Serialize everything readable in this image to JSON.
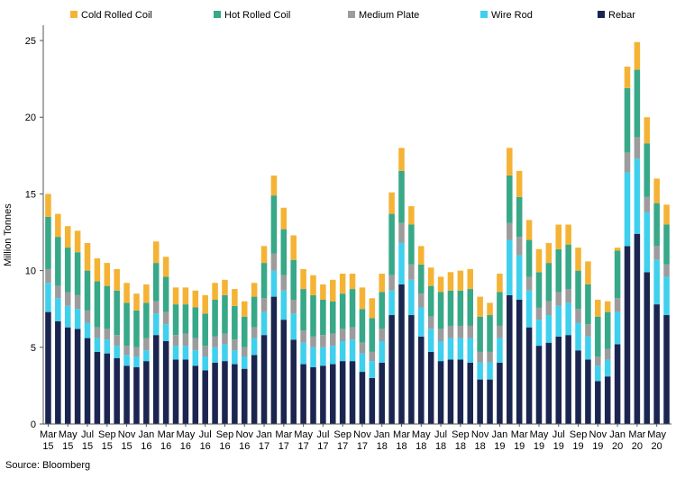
{
  "chart_data": {
    "type": "bar",
    "stacked": true,
    "ylabel": "Million Tonnes",
    "xlabel": "",
    "ylim": [
      0,
      26
    ],
    "yticks": [
      0,
      5,
      10,
      15,
      20,
      25
    ],
    "grid": false,
    "legend_position": "top",
    "source": "Source: Bloomberg",
    "colors": {
      "Cold Rolled Coil": "#f5b335",
      "Hot Rolled Coil": "#37a888",
      "Medium Plate": "#9c9c9c",
      "Wire Rod": "#3fd0ee",
      "Rebar": "#1b2650"
    },
    "x_tick_labels": [
      {
        "month": "Mar",
        "year": "15"
      },
      {
        "month": "May",
        "year": "15"
      },
      {
        "month": "Jul",
        "year": "15"
      },
      {
        "month": "Sep",
        "year": "15"
      },
      {
        "month": "Nov",
        "year": "15"
      },
      {
        "month": "Jan",
        "year": "16"
      },
      {
        "month": "Mar",
        "year": "16"
      },
      {
        "month": "May",
        "year": "16"
      },
      {
        "month": "Jul",
        "year": "16"
      },
      {
        "month": "Sep",
        "year": "16"
      },
      {
        "month": "Nov",
        "year": "16"
      },
      {
        "month": "Jan",
        "year": "17"
      },
      {
        "month": "Mar",
        "year": "17"
      },
      {
        "month": "May",
        "year": "17"
      },
      {
        "month": "Jul",
        "year": "17"
      },
      {
        "month": "Sep",
        "year": "17"
      },
      {
        "month": "Nov",
        "year": "17"
      },
      {
        "month": "Jan",
        "year": "18"
      },
      {
        "month": "Mar",
        "year": "18"
      },
      {
        "month": "May",
        "year": "18"
      },
      {
        "month": "Jul",
        "year": "18"
      },
      {
        "month": "Sep",
        "year": "18"
      },
      {
        "month": "Nov",
        "year": "18"
      },
      {
        "month": "Jan",
        "year": "19"
      },
      {
        "month": "Mar",
        "year": "19"
      },
      {
        "month": "May",
        "year": "19"
      },
      {
        "month": "Jul",
        "year": "19"
      },
      {
        "month": "Sep",
        "year": "19"
      },
      {
        "month": "Nov",
        "year": "19"
      },
      {
        "month": "Jan",
        "year": "20"
      },
      {
        "month": "Mar",
        "year": "20"
      },
      {
        "month": "May",
        "year": "20"
      }
    ],
    "categories": [
      "Mar 15",
      "Apr 15",
      "May 15",
      "Jun 15",
      "Jul 15",
      "Aug 15",
      "Sep 15",
      "Oct 15",
      "Nov 15",
      "Dec 15",
      "Jan 16",
      "Feb 16",
      "Mar 16",
      "Apr 16",
      "May 16",
      "Jun 16",
      "Jul 16",
      "Aug 16",
      "Sep 16",
      "Oct 16",
      "Nov 16",
      "Dec 16",
      "Jan 17",
      "Feb 17",
      "Mar 17",
      "Apr 17",
      "May 17",
      "Jun 17",
      "Jul 17",
      "Aug 17",
      "Sep 17",
      "Oct 17",
      "Nov 17",
      "Dec 17",
      "Jan 18",
      "Feb 18",
      "Mar 18",
      "Apr 18",
      "May 18",
      "Jun 18",
      "Jul 18",
      "Aug 18",
      "Sep 18",
      "Oct 18",
      "Nov 18",
      "Dec 18",
      "Jan 19",
      "Feb 19",
      "Mar 19",
      "Apr 19",
      "May 19",
      "Jun 19",
      "Jul 19",
      "Aug 19",
      "Sep 19",
      "Oct 19",
      "Nov 19",
      "Dec 19",
      "Jan 20",
      "Feb 20",
      "Mar 20",
      "Apr 20",
      "May 20",
      "Jun 20"
    ],
    "series": [
      {
        "name": "Rebar",
        "values": [
          7.3,
          6.7,
          6.3,
          6.2,
          5.6,
          4.7,
          4.6,
          4.3,
          3.8,
          3.7,
          4.1,
          5.8,
          5.4,
          4.2,
          4.2,
          3.8,
          3.5,
          4.0,
          4.1,
          3.9,
          3.6,
          4.5,
          5.8,
          8.3,
          6.8,
          5.5,
          3.9,
          3.7,
          3.8,
          3.9,
          4.1,
          4.1,
          3.4,
          3.0,
          4.0,
          7.1,
          9.1,
          7.1,
          5.7,
          4.7,
          4.1,
          4.2,
          4.2,
          4.0,
          2.9,
          2.9,
          4.0,
          8.4,
          8.1,
          6.3,
          5.1,
          5.3,
          5.7,
          5.8,
          4.8,
          4.2,
          2.8,
          3.1,
          5.2,
          11.6,
          12.4,
          9.9,
          7.8,
          7.1
        ]
      },
      {
        "name": "Wire Rod",
        "values": [
          1.9,
          1.5,
          1.4,
          1.3,
          1.0,
          0.9,
          0.9,
          0.8,
          0.7,
          0.7,
          0.7,
          1.4,
          1.1,
          0.9,
          0.9,
          1.0,
          0.9,
          1.0,
          1.1,
          0.9,
          0.8,
          1.1,
          1.5,
          1.7,
          1.9,
          1.7,
          1.4,
          1.3,
          1.2,
          1.2,
          1.3,
          1.4,
          1.2,
          1.1,
          1.4,
          1.6,
          2.7,
          2.3,
          1.9,
          1.5,
          1.3,
          1.4,
          1.4,
          1.6,
          1.1,
          1.1,
          1.6,
          3.6,
          2.9,
          2.4,
          1.7,
          1.8,
          2.0,
          2.1,
          1.8,
          1.5,
          1.0,
          1.1,
          2.1,
          4.8,
          4.9,
          3.9,
          2.9,
          2.5
        ]
      },
      {
        "name": "Medium Plate",
        "values": [
          0.9,
          0.8,
          0.9,
          0.9,
          0.8,
          0.7,
          0.7,
          0.7,
          0.6,
          0.6,
          0.8,
          0.8,
          0.8,
          0.7,
          0.8,
          0.8,
          0.7,
          0.7,
          0.7,
          0.7,
          0.6,
          0.7,
          0.9,
          1.1,
          1.0,
          0.9,
          0.8,
          0.7,
          0.8,
          0.8,
          0.8,
          0.8,
          0.7,
          0.6,
          0.8,
          1.0,
          1.3,
          1.0,
          0.9,
          0.8,
          0.8,
          0.8,
          0.8,
          0.8,
          0.7,
          0.7,
          0.8,
          1.1,
          1.2,
          0.9,
          0.8,
          0.9,
          0.9,
          0.9,
          0.9,
          0.8,
          0.6,
          0.7,
          0.9,
          1.3,
          1.4,
          1.0,
          0.9,
          0.8
        ]
      },
      {
        "name": "Hot Rolled Coil",
        "values": [
          3.4,
          3.2,
          2.9,
          2.8,
          2.6,
          3.0,
          2.8,
          2.9,
          2.8,
          2.4,
          2.3,
          2.5,
          2.3,
          2.0,
          1.9,
          2.0,
          2.1,
          2.4,
          2.5,
          2.2,
          2.0,
          2.0,
          2.3,
          3.8,
          3.0,
          2.6,
          2.7,
          2.7,
          2.3,
          2.1,
          2.3,
          2.5,
          2.2,
          2.2,
          2.4,
          4.0,
          3.4,
          2.6,
          1.9,
          2.0,
          2.4,
          2.3,
          2.3,
          2.4,
          2.3,
          2.4,
          2.2,
          3.1,
          2.6,
          2.4,
          2.3,
          2.5,
          2.8,
          2.9,
          2.5,
          2.6,
          2.6,
          2.4,
          3.1,
          4.2,
          4.4,
          3.5,
          2.8,
          2.6
        ]
      },
      {
        "name": "Cold Rolled Coil",
        "values": [
          1.5,
          1.5,
          1.4,
          1.4,
          1.8,
          1.5,
          1.5,
          1.4,
          1.3,
          1.1,
          1.2,
          1.4,
          1.3,
          1.1,
          1.1,
          1.1,
          1.2,
          1.1,
          1.0,
          1.1,
          1.0,
          0.9,
          1.1,
          1.3,
          1.4,
          1.6,
          1.3,
          1.3,
          1.0,
          1.4,
          1.3,
          1.0,
          1.4,
          1.3,
          1.2,
          1.4,
          1.5,
          1.2,
          1.2,
          1.2,
          1.0,
          1.2,
          1.3,
          1.3,
          1.3,
          0.8,
          1.2,
          1.8,
          1.7,
          1.3,
          1.5,
          1.3,
          1.6,
          1.3,
          1.5,
          1.5,
          1.1,
          0.7,
          0.2,
          1.4,
          1.8,
          1.7,
          1.6,
          1.3
        ]
      }
    ],
    "legend": [
      "Cold Rolled Coil",
      "Hot Rolled Coil",
      "Medium Plate",
      "Wire Rod",
      "Rebar"
    ]
  }
}
